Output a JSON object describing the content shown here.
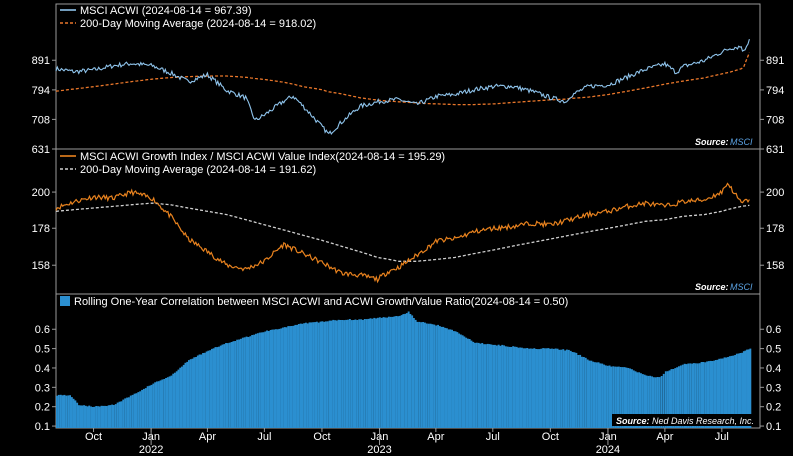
{
  "colors": {
    "background": "#000000",
    "acwi_line": "#8fc4ec",
    "acwi_ma": "#e8762a",
    "ratio_line": "#e8821e",
    "ratio_ma": "#cfcfcf",
    "correlation_bars": "#2b8fd0",
    "source_value": "#5aa0e0"
  },
  "chart_data": [
    {
      "type": "line",
      "panel": "top",
      "legend": [
        "MSCI ACWI (2024-08-14 = 967.39)",
        "200-Day Moving Average (2024-08-14 = 918.02)"
      ],
      "source_label": "Source:",
      "source_value": "MSCI",
      "y_scale": "log",
      "ylim": [
        631,
        1010
      ],
      "yticks": [
        "891",
        "794",
        "708",
        "631"
      ],
      "ytick_values": [
        891,
        794,
        708,
        631
      ],
      "x": [
        "2021-08-02",
        "2021-09-01",
        "2021-10-01",
        "2021-11-01",
        "2021-12-01",
        "2022-01-03",
        "2022-02-01",
        "2022-03-01",
        "2022-04-01",
        "2022-05-02",
        "2022-06-01",
        "2022-06-16",
        "2022-07-01",
        "2022-08-01",
        "2022-08-16",
        "2022-09-01",
        "2022-09-30",
        "2022-10-12",
        "2022-11-01",
        "2022-12-01",
        "2023-01-03",
        "2023-02-01",
        "2023-03-01",
        "2023-03-15",
        "2023-04-03",
        "2023-05-01",
        "2023-06-01",
        "2023-07-03",
        "2023-08-01",
        "2023-09-01",
        "2023-10-02",
        "2023-10-27",
        "2023-11-01",
        "2023-12-01",
        "2024-01-02",
        "2024-02-01",
        "2024-03-01",
        "2024-04-01",
        "2024-04-19",
        "2024-05-01",
        "2024-06-03",
        "2024-07-01",
        "2024-07-16",
        "2024-08-01",
        "2024-08-05",
        "2024-08-14"
      ],
      "series": [
        {
          "name": "MSCI ACWI",
          "values": [
            862,
            852,
            858,
            872,
            880,
            872,
            848,
            820,
            842,
            792,
            770,
            705,
            720,
            760,
            775,
            745,
            690,
            668,
            700,
            745,
            760,
            765,
            750,
            760,
            775,
            780,
            795,
            805,
            805,
            790,
            770,
            758,
            775,
            805,
            810,
            835,
            860,
            878,
            850,
            870,
            890,
            920,
            935,
            940,
            920,
            967.39
          ]
        },
        {
          "name": "200-Day Moving Average",
          "values": [
            790,
            797,
            804,
            812,
            820,
            828,
            833,
            836,
            838,
            838,
            834,
            830,
            827,
            818,
            812,
            804,
            795,
            788,
            782,
            770,
            762,
            758,
            755,
            753,
            752,
            750,
            750,
            752,
            756,
            760,
            764,
            766,
            768,
            772,
            780,
            790,
            800,
            812,
            818,
            822,
            832,
            845,
            852,
            862,
            868,
            918.02
          ]
        }
      ]
    },
    {
      "type": "line",
      "panel": "middle",
      "legend": [
        "MSCI ACWI Growth Index / MSCI ACWI Value Index(2024-08-14 = 195.29)",
        "200-Day Moving Average (2024-08-14 = 191.62)"
      ],
      "source_label": "Source:",
      "source_value": "MSCI",
      "y_scale": "log",
      "ylim": [
        144,
        212
      ],
      "yticks": [
        "200",
        "178",
        "158"
      ],
      "ytick_values": [
        200,
        178,
        158
      ],
      "x": [
        "2021-08-02",
        "2021-09-01",
        "2021-10-01",
        "2021-11-01",
        "2021-12-01",
        "2022-01-03",
        "2022-02-01",
        "2022-03-01",
        "2022-04-01",
        "2022-05-02",
        "2022-06-01",
        "2022-07-01",
        "2022-08-01",
        "2022-09-01",
        "2022-10-03",
        "2022-11-01",
        "2022-12-01",
        "2022-12-29",
        "2023-01-16",
        "2023-02-01",
        "2023-03-01",
        "2023-04-03",
        "2023-05-01",
        "2023-06-01",
        "2023-07-03",
        "2023-08-01",
        "2023-09-01",
        "2023-10-02",
        "2023-11-01",
        "2023-12-01",
        "2024-01-02",
        "2024-02-01",
        "2024-03-01",
        "2024-04-01",
        "2024-05-01",
        "2024-06-03",
        "2024-07-01",
        "2024-07-10",
        "2024-08-01",
        "2024-08-14"
      ],
      "series": [
        {
          "name": "MSCI ACWI Growth Index / MSCI ACWI Value Index",
          "values": [
            190,
            194,
            197,
            196,
            200,
            196,
            185,
            172,
            165,
            158,
            156,
            160,
            169,
            164,
            159,
            154,
            153,
            151,
            155,
            157,
            163,
            171,
            172,
            176,
            178,
            179,
            181,
            180,
            183,
            186,
            188,
            191,
            193,
            191,
            194,
            195,
            200,
            206,
            193,
            195.29
          ]
        },
        {
          "name": "200-Day Moving Average",
          "values": [
            188,
            189,
            190,
            191,
            192,
            193,
            192,
            190,
            188,
            186,
            183,
            180,
            177,
            174,
            171,
            168,
            165,
            162,
            161,
            160,
            160,
            161,
            162,
            164,
            166,
            168,
            170,
            172,
            174,
            176,
            178,
            180,
            182,
            183,
            185,
            186,
            188,
            189,
            191,
            191.62
          ]
        }
      ]
    },
    {
      "type": "bar",
      "panel": "bottom",
      "legend": [
        "Rolling One-Year Correlation between MSCI ACWI and ACWI Growth/Value Ratio(2024-08-14 = 0.50)"
      ],
      "source_label": "Source:",
      "source_value": "Ned Davis Research, Inc.",
      "ylim": [
        0.09,
        0.72
      ],
      "yticks": [
        "0.6",
        "0.5",
        "0.4",
        "0.3",
        "0.2",
        "0.1"
      ],
      "ytick_values": [
        0.6,
        0.5,
        0.4,
        0.3,
        0.2,
        0.1
      ],
      "x": [
        "2021-08-02",
        "2021-08-23",
        "2021-09-06",
        "2021-10-01",
        "2021-11-01",
        "2021-12-01",
        "2022-01-03",
        "2022-02-01",
        "2022-03-01",
        "2022-04-01",
        "2022-05-02",
        "2022-06-01",
        "2022-07-01",
        "2022-08-01",
        "2022-09-01",
        "2022-10-03",
        "2022-11-01",
        "2022-12-01",
        "2023-01-03",
        "2023-02-01",
        "2023-02-15",
        "2023-03-01",
        "2023-04-03",
        "2023-05-01",
        "2023-06-01",
        "2023-07-03",
        "2023-08-01",
        "2023-09-01",
        "2023-10-02",
        "2023-11-01",
        "2023-12-01",
        "2024-01-02",
        "2024-02-01",
        "2024-03-01",
        "2024-03-22",
        "2024-04-01",
        "2024-05-01",
        "2024-06-03",
        "2024-07-01",
        "2024-08-01",
        "2024-08-14"
      ],
      "series": [
        {
          "name": "Rolling One-Year Correlation",
          "values": [
            0.26,
            0.26,
            0.21,
            0.2,
            0.21,
            0.26,
            0.32,
            0.36,
            0.44,
            0.49,
            0.53,
            0.56,
            0.59,
            0.61,
            0.63,
            0.64,
            0.65,
            0.65,
            0.66,
            0.67,
            0.69,
            0.64,
            0.62,
            0.59,
            0.53,
            0.52,
            0.51,
            0.5,
            0.5,
            0.49,
            0.44,
            0.41,
            0.4,
            0.36,
            0.35,
            0.38,
            0.42,
            0.43,
            0.45,
            0.48,
            0.5
          ]
        }
      ]
    }
  ],
  "x_axis": {
    "months": [
      {
        "label": "Oct",
        "date": "2021-10-01"
      },
      {
        "label": "Jan",
        "date": "2022-01-01"
      },
      {
        "label": "Apr",
        "date": "2022-04-01"
      },
      {
        "label": "Jul",
        "date": "2022-07-01"
      },
      {
        "label": "Oct",
        "date": "2022-10-01"
      },
      {
        "label": "Jan",
        "date": "2023-01-01"
      },
      {
        "label": "Apr",
        "date": "2023-04-01"
      },
      {
        "label": "Jul",
        "date": "2023-07-01"
      },
      {
        "label": "Oct",
        "date": "2023-10-01"
      },
      {
        "label": "Jan",
        "date": "2024-01-01"
      },
      {
        "label": "Apr",
        "date": "2024-04-01"
      },
      {
        "label": "Jul",
        "date": "2024-07-01"
      }
    ],
    "years": [
      {
        "label": "2022",
        "date": "2022-01-01"
      },
      {
        "label": "2023",
        "date": "2023-01-01"
      },
      {
        "label": "2024",
        "date": "2024-01-01"
      }
    ],
    "range": [
      "2021-08-02",
      "2024-08-31"
    ]
  }
}
